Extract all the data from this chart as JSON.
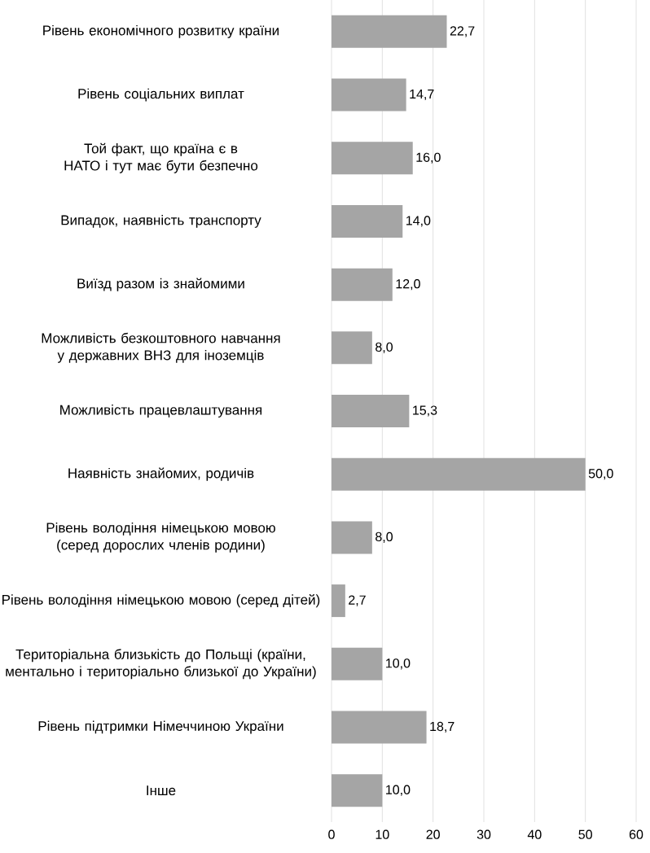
{
  "chart_data": {
    "type": "bar",
    "orientation": "horizontal",
    "categories": [
      "Рівень економічного розвитку країни",
      "Рівень соціальних виплат",
      "Той факт, що країна є в НАТО і тут має бути безпечно",
      "Випадок, наявність транспорту",
      "Виїзд разом із знайомими",
      "Можливість безкоштовного навчання у державних ВНЗ для іноземців",
      "Можливість працевлаштування",
      "Наявність знайомих, родичів",
      "Рівень володіння німецькою мовою (серед дорослих членів родини)",
      "Рівень володіння німецькою мовою (серед дітей)",
      "Територіальна близькість до Польщі (країни, ментально і територіально близької до України)",
      "Рівень підтримки Німеччиною України",
      "Інше"
    ],
    "values": [
      22.7,
      14.7,
      16.0,
      14.0,
      12.0,
      8.0,
      15.3,
      50.0,
      8.0,
      2.7,
      10.0,
      18.7,
      10.0
    ],
    "value_labels": [
      "22,7",
      "14,7",
      "16,0",
      "14,0",
      "12,0",
      "8,0",
      "15,3",
      "50,0",
      "8,0",
      "2,7",
      "10,0",
      "18,7",
      "10,0"
    ],
    "color": "#a5a5a5",
    "xlim": [
      0,
      60
    ],
    "xticks": [
      0,
      10,
      20,
      30,
      40,
      50,
      60
    ],
    "grid": "x"
  }
}
